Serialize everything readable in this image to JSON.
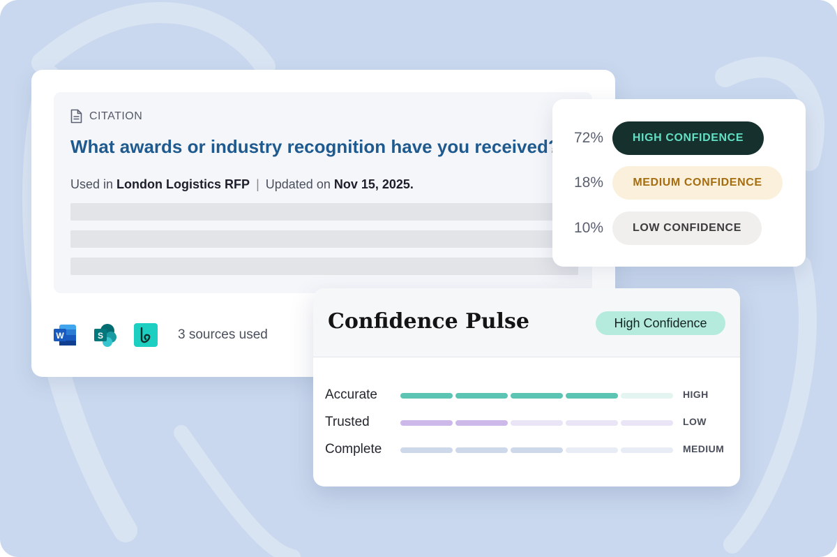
{
  "citation": {
    "label": "CITATION",
    "question": "What awards or industry recognition have you received?",
    "meta": {
      "used_in_prefix": "Used in",
      "used_in": "London Logistics RFP",
      "separator": "|",
      "updated_prefix": "Updated on",
      "updated_date": "Nov 15, 2025."
    },
    "sources": {
      "icons": [
        "word-icon",
        "sharepoint-icon",
        "loopio-icon"
      ],
      "text": "3 sources used"
    }
  },
  "distribution": {
    "items": [
      {
        "percent": "72%",
        "label": "HIGH CONFIDENCE",
        "level": "high"
      },
      {
        "percent": "18%",
        "label": "MEDIUM CONFIDENCE",
        "level": "medium"
      },
      {
        "percent": "10%",
        "label": "LOW CONFIDENCE",
        "level": "low"
      }
    ]
  },
  "pulse": {
    "title": "Confidence Pulse",
    "badge": "High Confidence",
    "segments_total": 5,
    "metrics": [
      {
        "label": "Accurate",
        "level": "HIGH",
        "filled": 4,
        "color": "#5cc4b2",
        "empty_color": "#e3f4f1"
      },
      {
        "label": "Trusted",
        "level": "LOW",
        "filled": 2,
        "color": "#cdb8ea",
        "empty_color": "#e9e4f6"
      },
      {
        "label": "Complete",
        "level": "MEDIUM",
        "filled": 3,
        "color": "#cdd8ea",
        "empty_color": "#e8edf5"
      }
    ]
  },
  "colors": {
    "background": "#c9d8ee",
    "title_blue": "#1f5a8f",
    "high_pill": "#16302d",
    "high_text": "#63e0c4",
    "medium_pill": "#fbf0dc",
    "medium_text": "#a56d0f",
    "low_pill": "#f0efed",
    "badge": "#b5ebdc"
  }
}
